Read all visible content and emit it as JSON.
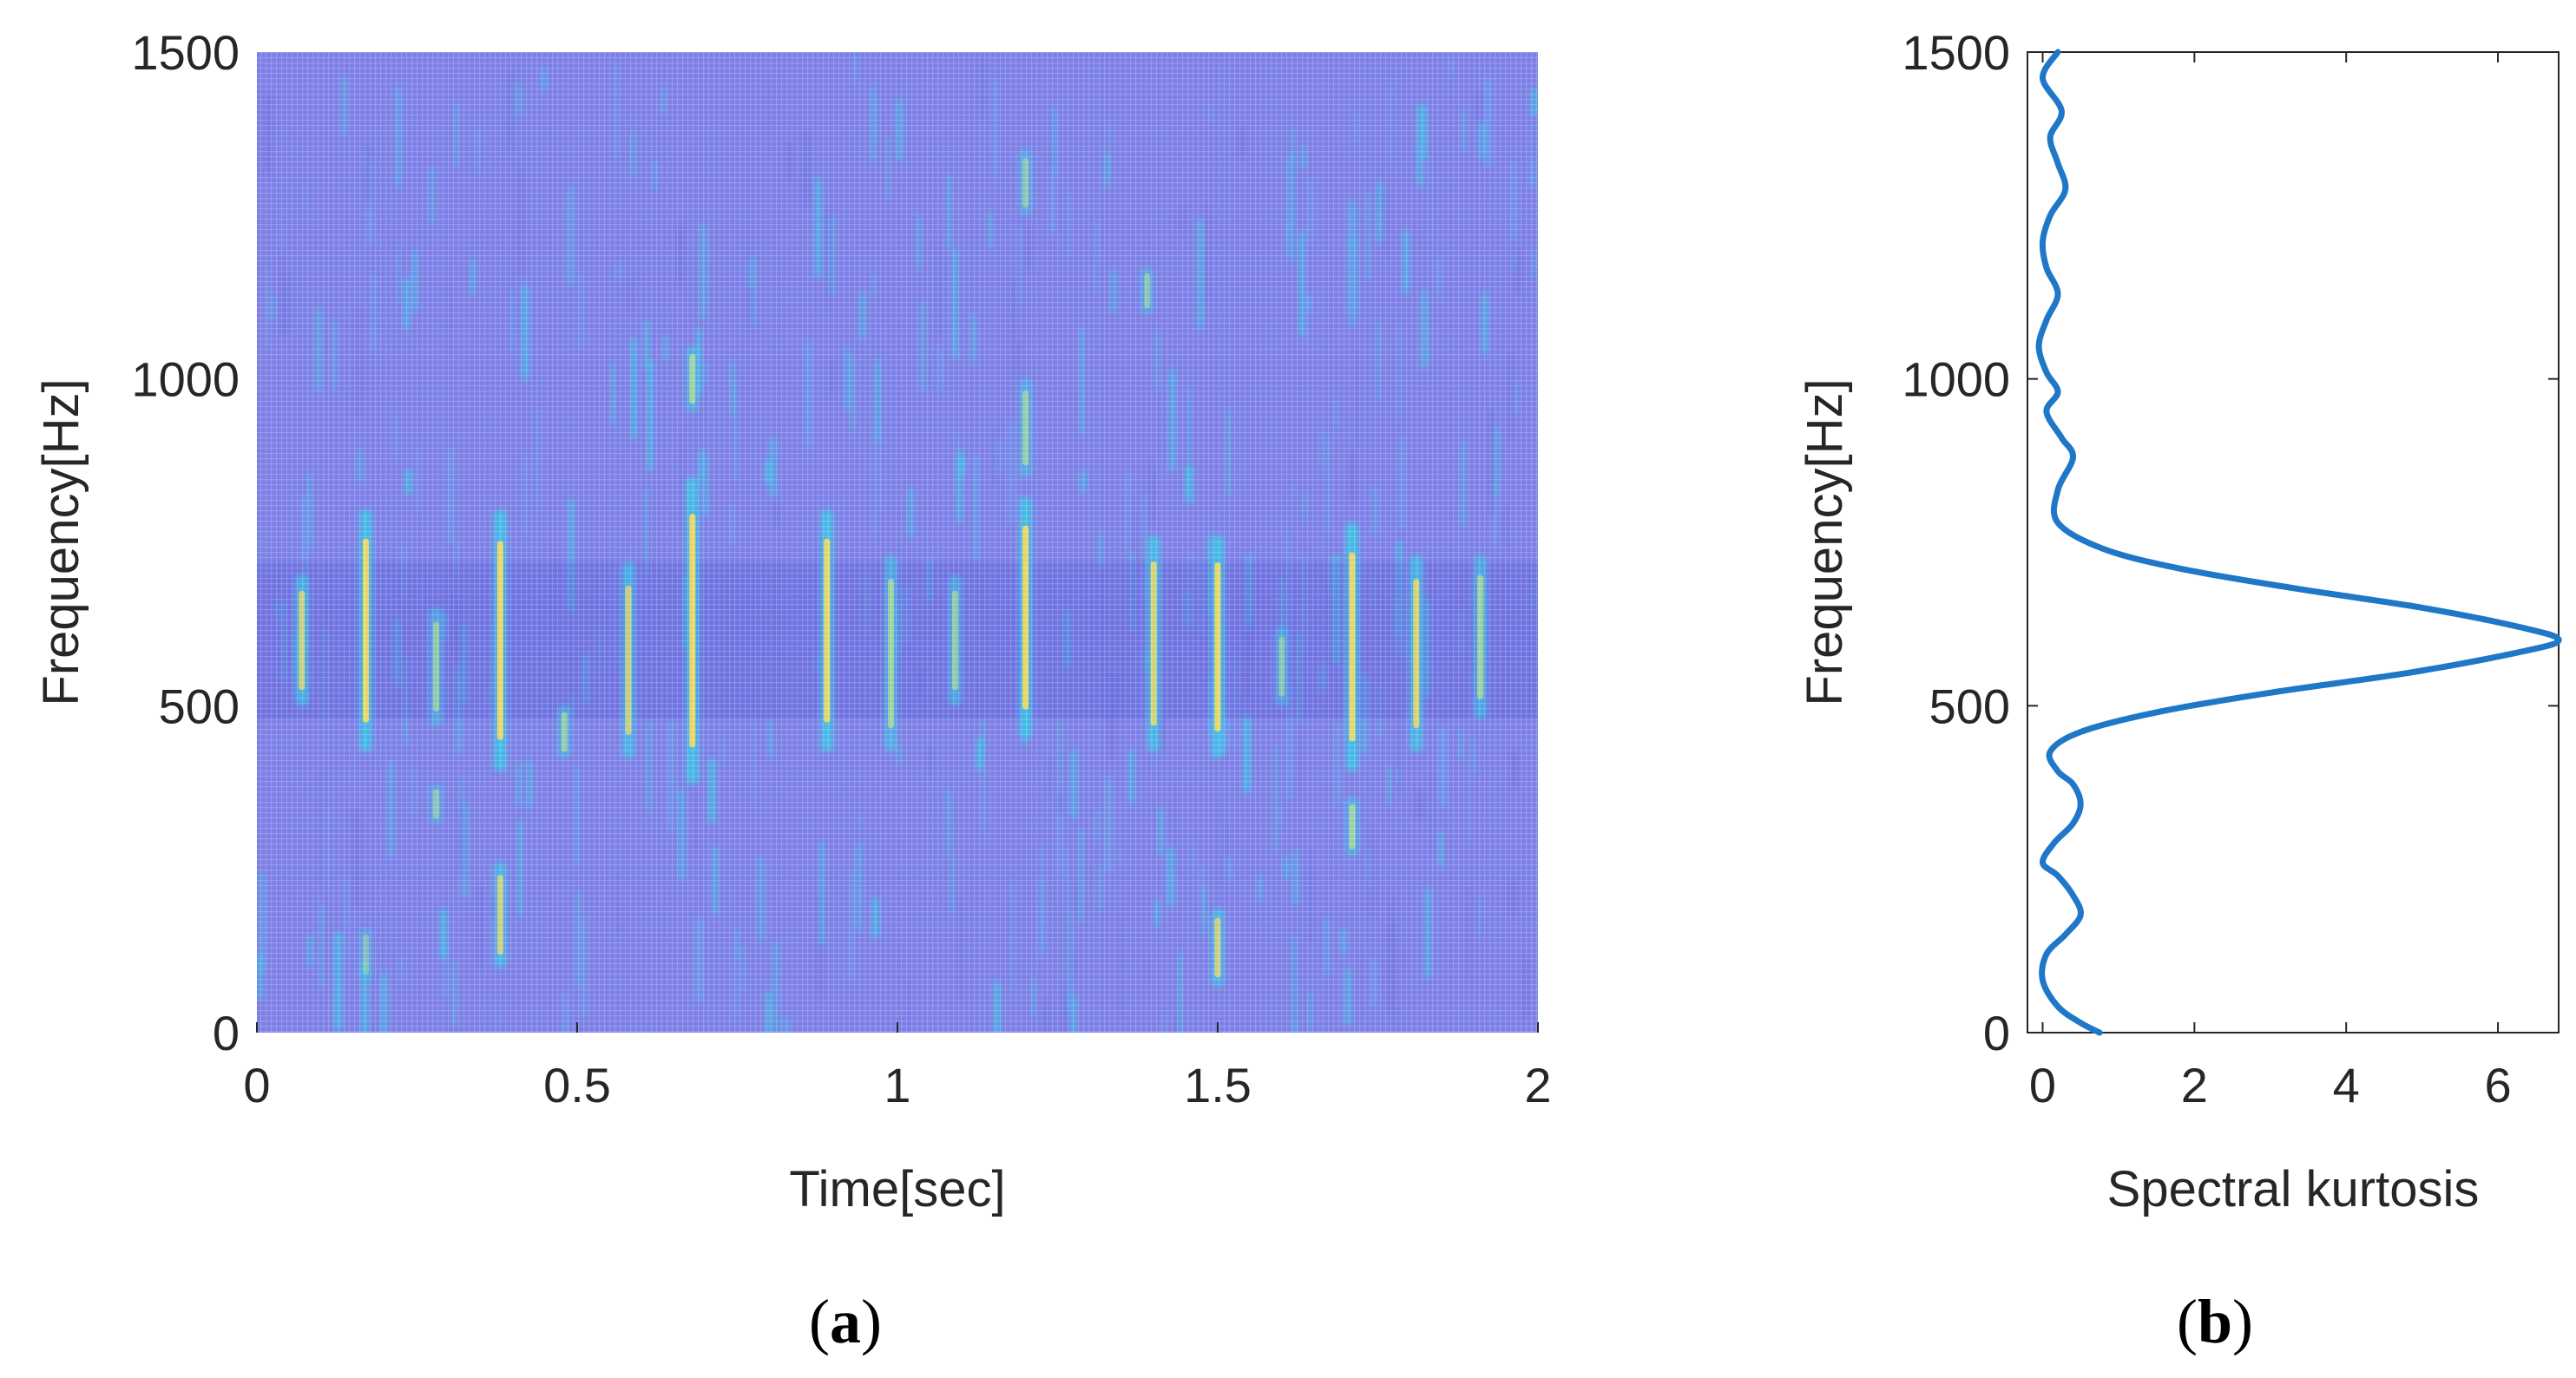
{
  "panel_labels": {
    "a": "a",
    "b": "b"
  },
  "chart_data": [
    {
      "type": "heatmap",
      "panel": "a",
      "title": "",
      "xlabel": "Time[sec]",
      "ylabel": "Frequency[Hz]",
      "xlim": [
        0,
        2
      ],
      "ylim": [
        0,
        1500
      ],
      "xticks": [
        0,
        0.5,
        1,
        1.5,
        2
      ],
      "xtick_labels": [
        "0",
        "0.5",
        "1",
        "1.5",
        "2"
      ],
      "yticks": [
        0,
        500,
        1000,
        1500
      ],
      "ytick_labels": [
        "0",
        "500",
        "1000",
        "1500"
      ],
      "colors": {
        "background": "#7b7fe6",
        "low": "#6e6fe0",
        "mid": "#2fd0e6",
        "high": "#f7d95a"
      },
      "impulses": [
        {
          "t": 0.07,
          "f_low": 500,
          "f_high": 700,
          "intensity": 0.8
        },
        {
          "t": 0.17,
          "f_low": 430,
          "f_high": 800,
          "intensity": 1.0
        },
        {
          "t": 0.28,
          "f_low": 470,
          "f_high": 650,
          "intensity": 0.6
        },
        {
          "t": 0.38,
          "f_low": 400,
          "f_high": 800,
          "intensity": 1.0
        },
        {
          "t": 0.48,
          "f_low": 420,
          "f_high": 500,
          "intensity": 0.6
        },
        {
          "t": 0.58,
          "f_low": 420,
          "f_high": 720,
          "intensity": 0.8
        },
        {
          "t": 0.68,
          "f_low": 380,
          "f_high": 850,
          "intensity": 1.0
        },
        {
          "t": 0.89,
          "f_low": 430,
          "f_high": 800,
          "intensity": 1.0
        },
        {
          "t": 0.99,
          "f_low": 430,
          "f_high": 730,
          "intensity": 0.7
        },
        {
          "t": 1.09,
          "f_low": 500,
          "f_high": 700,
          "intensity": 0.6
        },
        {
          "t": 1.2,
          "f_low": 450,
          "f_high": 820,
          "intensity": 1.0
        },
        {
          "t": 1.4,
          "f_low": 430,
          "f_high": 760,
          "intensity": 0.9
        },
        {
          "t": 1.5,
          "f_low": 420,
          "f_high": 760,
          "intensity": 1.0
        },
        {
          "t": 1.6,
          "f_low": 500,
          "f_high": 620,
          "intensity": 0.5
        },
        {
          "t": 1.71,
          "f_low": 400,
          "f_high": 780,
          "intensity": 1.0
        },
        {
          "t": 1.81,
          "f_low": 430,
          "f_high": 730,
          "intensity": 0.9
        },
        {
          "t": 1.91,
          "f_low": 480,
          "f_high": 730,
          "intensity": 0.7
        },
        {
          "t": 0.38,
          "f_low": 100,
          "f_high": 260,
          "intensity": 0.8
        },
        {
          "t": 1.5,
          "f_low": 70,
          "f_high": 190,
          "intensity": 0.8
        },
        {
          "t": 1.71,
          "f_low": 270,
          "f_high": 360,
          "intensity": 0.7
        },
        {
          "t": 0.68,
          "f_low": 950,
          "f_high": 1050,
          "intensity": 0.7
        },
        {
          "t": 1.2,
          "f_low": 850,
          "f_high": 1000,
          "intensity": 0.6
        },
        {
          "t": 1.2,
          "f_low": 1250,
          "f_high": 1350,
          "intensity": 0.5
        },
        {
          "t": 1.39,
          "f_low": 1100,
          "f_high": 1170,
          "intensity": 0.5
        },
        {
          "t": 0.28,
          "f_low": 320,
          "f_high": 380,
          "intensity": 0.5
        },
        {
          "t": 0.17,
          "f_low": 80,
          "f_high": 160,
          "intensity": 0.4
        }
      ]
    },
    {
      "type": "line",
      "panel": "b",
      "title": "",
      "xlabel": "Spectral kurtosis",
      "ylabel": "Frequency[Hz]",
      "xlim": [
        -0.2,
        6.8
      ],
      "ylim": [
        0,
        1500
      ],
      "xticks": [
        0,
        2,
        4,
        6
      ],
      "xtick_labels": [
        "0",
        "2",
        "4",
        "6"
      ],
      "yticks": [
        0,
        500,
        1000,
        1500
      ],
      "ytick_labels": [
        "0",
        "500",
        "1000",
        "1500"
      ],
      "line_color": "#1f77c8",
      "series": [
        {
          "x": [
            0.75,
            0.5,
            0.2,
            0.0,
            0.05,
            0.3,
            0.5,
            0.4,
            0.2,
            0.0,
            0.15,
            0.4,
            0.5,
            0.4,
            0.2,
            0.1,
            0.5,
            1.5,
            3.0,
            4.8,
            6.2,
            6.8,
            6.3,
            5.0,
            3.3,
            1.8,
            0.8,
            0.2,
            0.2,
            0.4,
            0.25,
            0.05,
            0.2,
            0.05,
            -0.05,
            0.05,
            0.2,
            0.05,
            0.0,
            0.1,
            0.3,
            0.2,
            0.1,
            0.25,
            0.0,
            0.2
          ],
          "y": [
            0,
            15,
            40,
            80,
            120,
            150,
            180,
            210,
            240,
            260,
            290,
            320,
            350,
            380,
            400,
            430,
            460,
            490,
            520,
            550,
            580,
            600,
            620,
            650,
            680,
            710,
            740,
            780,
            830,
            880,
            910,
            950,
            980,
            1010,
            1050,
            1090,
            1130,
            1170,
            1210,
            1250,
            1290,
            1330,
            1370,
            1410,
            1460,
            1500
          ]
        }
      ]
    }
  ]
}
